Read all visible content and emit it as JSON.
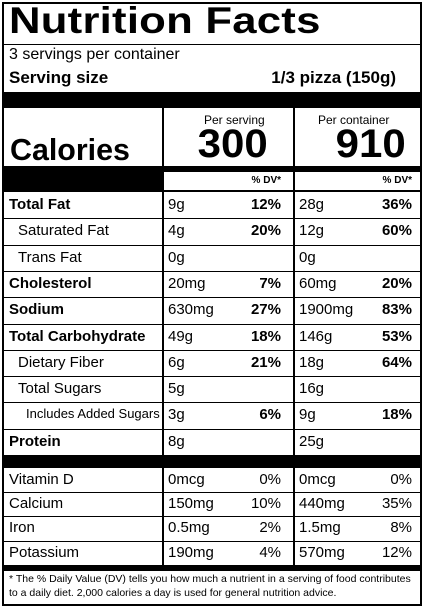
{
  "title": "Nutrition Facts",
  "servings_per_container": "3 servings per container",
  "serving_size_label": "Serving size",
  "serving_size_value": "1/3 pizza (150g)",
  "per_serving_header": "Per serving",
  "per_container_header": "Per container",
  "calories_label": "Calories",
  "calories_per_serving": "300",
  "calories_per_container": "910",
  "dv_header": "% DV*",
  "nutrients": [
    {
      "name": "Total Fat",
      "indent": 0,
      "bold": true,
      "serving_amt": "9g",
      "serving_dv": "12%",
      "container_amt": "28g",
      "container_dv": "36%"
    },
    {
      "name": "Saturated Fat",
      "indent": 1,
      "bold": false,
      "serving_amt": "4g",
      "serving_dv": "20%",
      "container_amt": "12g",
      "container_dv": "60%"
    },
    {
      "name": "Trans Fat",
      "indent": 1,
      "bold": false,
      "serving_amt": "0g",
      "serving_dv": "",
      "container_amt": "0g",
      "container_dv": ""
    },
    {
      "name": "Cholesterol",
      "indent": 0,
      "bold": true,
      "serving_amt": "20mg",
      "serving_dv": "7%",
      "container_amt": "60mg",
      "container_dv": "20%"
    },
    {
      "name": "Sodium",
      "indent": 0,
      "bold": true,
      "serving_amt": "630mg",
      "serving_dv": "27%",
      "container_amt": "1900mg",
      "container_dv": "83%"
    },
    {
      "name": "Total Carbohydrate",
      "indent": 0,
      "bold": true,
      "serving_amt": "49g",
      "serving_dv": "18%",
      "container_amt": "146g",
      "container_dv": "53%"
    },
    {
      "name": "Dietary Fiber",
      "indent": 1,
      "bold": false,
      "serving_amt": "6g",
      "serving_dv": "21%",
      "container_amt": "18g",
      "container_dv": "64%"
    },
    {
      "name": "Total Sugars",
      "indent": 1,
      "bold": false,
      "serving_amt": "5g",
      "serving_dv": "",
      "container_amt": "16g",
      "container_dv": ""
    },
    {
      "name": "Includes Added Sugars",
      "indent": 2,
      "bold": false,
      "serving_amt": "3g",
      "serving_dv": "6%",
      "container_amt": "9g",
      "container_dv": "18%"
    },
    {
      "name": "Protein",
      "indent": 0,
      "bold": true,
      "serving_amt": "8g",
      "serving_dv": "",
      "container_amt": "25g",
      "container_dv": ""
    }
  ],
  "micronutrients": [
    {
      "name": "Vitamin D",
      "serving_amt": "0mcg",
      "serving_dv": "0%",
      "container_amt": "0mcg",
      "container_dv": "0%"
    },
    {
      "name": "Calcium",
      "serving_amt": "150mg",
      "serving_dv": "10%",
      "container_amt": "440mg",
      "container_dv": "35%"
    },
    {
      "name": "Iron",
      "serving_amt": "0.5mg",
      "serving_dv": "2%",
      "container_amt": "1.5mg",
      "container_dv": "8%"
    },
    {
      "name": "Potassium",
      "serving_amt": "190mg",
      "serving_dv": "4%",
      "container_amt": "570mg",
      "container_dv": "12%"
    }
  ],
  "footnote": "* The % Daily Value (DV) tells you how much a nutrient in a serving of food contributes to a daily diet. 2,000 calories a day is used for general nutrition advice."
}
